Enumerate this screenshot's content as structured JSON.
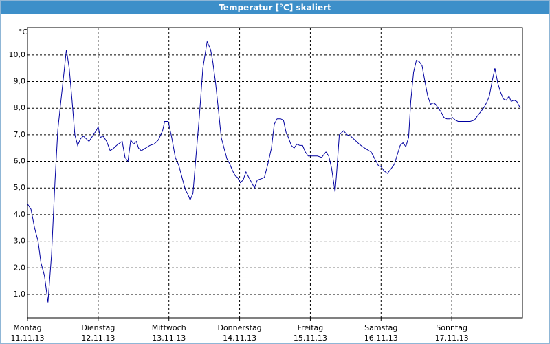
{
  "chart_data": {
    "type": "line",
    "title": "Temperatur [°C] skaliert",
    "y_label": "°C",
    "xlim": [
      0,
      7
    ],
    "ylim": [
      0.12,
      11.03
    ],
    "xticks": [
      {
        "value": 0,
        "label": "Montag",
        "date": "11.11.13"
      },
      {
        "value": 1,
        "label": "Dienstag",
        "date": "12.11.13"
      },
      {
        "value": 2,
        "label": "Mittwoch",
        "date": "13.11.13"
      },
      {
        "value": 3,
        "label": "Donnerstag",
        "date": "14.11.13"
      },
      {
        "value": 4,
        "label": "Freitag",
        "date": "15.11.13"
      },
      {
        "value": 5,
        "label": "Samstag",
        "date": "16.11.13"
      },
      {
        "value": 6,
        "label": "Sonntag",
        "date": "17.11.13"
      }
    ],
    "yticks": [
      {
        "value": 1,
        "label": "1,0"
      },
      {
        "value": 2,
        "label": "2,0"
      },
      {
        "value": 3,
        "label": "3,0"
      },
      {
        "value": 4,
        "label": "4,0"
      },
      {
        "value": 5,
        "label": "5,0"
      },
      {
        "value": 6,
        "label": "6,0"
      },
      {
        "value": 7,
        "label": "7,0"
      },
      {
        "value": 8,
        "label": "8,0"
      },
      {
        "value": 9,
        "label": "9,0"
      },
      {
        "value": 10,
        "label": "10,0"
      }
    ],
    "grid": true,
    "color": "#0000a0",
    "x": [
      0.0,
      0.05,
      0.1,
      0.15,
      0.19,
      0.24,
      0.29,
      0.34,
      0.39,
      0.43,
      0.47,
      0.51,
      0.55,
      0.59,
      0.63,
      0.67,
      0.71,
      0.75,
      0.79,
      0.83,
      0.87,
      0.92,
      0.97,
      1.0,
      1.03,
      1.07,
      1.12,
      1.17,
      1.22,
      1.26,
      1.31,
      1.34,
      1.38,
      1.42,
      1.46,
      1.5,
      1.54,
      1.57,
      1.61,
      1.67,
      1.73,
      1.79,
      1.85,
      1.91,
      1.94,
      1.99,
      2.04,
      2.09,
      2.14,
      2.19,
      2.23,
      2.27,
      2.3,
      2.34,
      2.38,
      2.43,
      2.48,
      2.54,
      2.59,
      2.62,
      2.66,
      2.7,
      2.74,
      2.78,
      2.82,
      2.86,
      2.9,
      2.94,
      2.97,
      3.01,
      3.05,
      3.09,
      3.13,
      3.17,
      3.21,
      3.25,
      3.31,
      3.35,
      3.4,
      3.45,
      3.49,
      3.53,
      3.58,
      3.62,
      3.66,
      3.69,
      3.73,
      3.77,
      3.81,
      3.85,
      3.89,
      3.93,
      3.97,
      4.03,
      4.1,
      4.16,
      4.22,
      4.26,
      4.3,
      4.35,
      4.37,
      4.41,
      4.47,
      4.52,
      4.57,
      4.63,
      4.69,
      4.74,
      4.8,
      4.86,
      4.92,
      4.96,
      5.0,
      5.04,
      5.09,
      5.15,
      5.19,
      5.23,
      5.27,
      5.31,
      5.35,
      5.39,
      5.42,
      5.46,
      5.5,
      5.54,
      5.58,
      5.62,
      5.66,
      5.7,
      5.74,
      5.77,
      5.81,
      5.85,
      5.89,
      5.93,
      5.97,
      6.01,
      6.05,
      6.09,
      6.14,
      6.2,
      6.26,
      6.32,
      6.36,
      6.42,
      6.46,
      6.5,
      6.53,
      6.57,
      6.61,
      6.65,
      6.69,
      6.73,
      6.77,
      6.81,
      6.84,
      6.88,
      6.92,
      6.97
    ],
    "values": [
      4.4,
      4.2,
      3.5,
      3.0,
      2.2,
      1.7,
      0.7,
      2.5,
      5.3,
      7.2,
      8.2,
      9.2,
      10.2,
      9.5,
      8.3,
      7.0,
      6.6,
      6.85,
      6.95,
      6.85,
      6.75,
      6.95,
      7.15,
      7.3,
      6.9,
      6.95,
      6.75,
      6.4,
      6.5,
      6.6,
      6.7,
      6.75,
      6.15,
      6.0,
      6.8,
      6.65,
      6.75,
      6.5,
      6.4,
      6.5,
      6.6,
      6.65,
      6.8,
      7.15,
      7.5,
      7.5,
      6.9,
      6.15,
      5.85,
      5.35,
      4.95,
      4.75,
      4.55,
      4.8,
      6.1,
      7.65,
      9.5,
      10.5,
      10.2,
      9.75,
      8.95,
      7.95,
      6.9,
      6.5,
      6.1,
      5.9,
      5.65,
      5.45,
      5.4,
      5.2,
      5.3,
      5.6,
      5.4,
      5.2,
      5.0,
      5.3,
      5.35,
      5.4,
      5.9,
      6.5,
      7.4,
      7.6,
      7.6,
      7.55,
      7.05,
      6.9,
      6.6,
      6.5,
      6.65,
      6.6,
      6.6,
      6.35,
      6.2,
      6.2,
      6.2,
      6.15,
      6.35,
      6.2,
      5.75,
      4.85,
      5.5,
      7.0,
      7.15,
      7.0,
      6.95,
      6.8,
      6.65,
      6.55,
      6.45,
      6.35,
      6.05,
      5.85,
      5.8,
      5.65,
      5.55,
      5.75,
      5.9,
      6.25,
      6.6,
      6.7,
      6.55,
      6.9,
      8.25,
      9.35,
      9.8,
      9.75,
      9.6,
      9.0,
      8.45,
      8.15,
      8.2,
      8.15,
      8.0,
      7.85,
      7.65,
      7.6,
      7.6,
      7.65,
      7.55,
      7.5,
      7.5,
      7.5,
      7.5,
      7.55,
      7.7,
      7.9,
      8.05,
      8.25,
      8.45,
      9.0,
      9.5,
      8.95,
      8.6,
      8.35,
      8.3,
      8.45,
      8.25,
      8.3,
      8.25,
      8.0
    ]
  }
}
